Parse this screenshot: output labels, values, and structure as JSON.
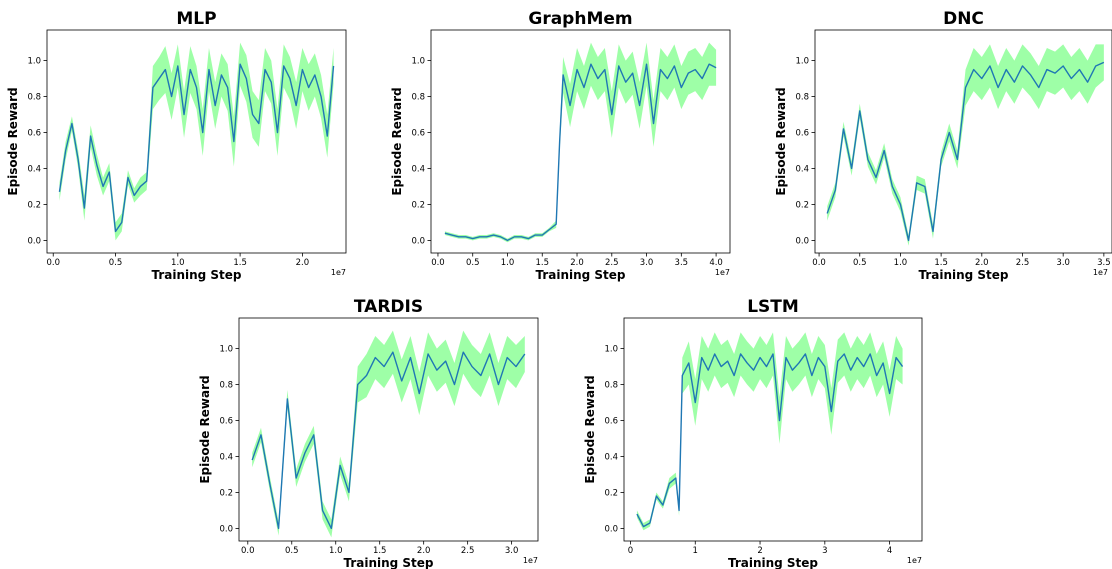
{
  "chart_data": [
    {
      "type": "line",
      "title": "MLP",
      "xlabel": "Training Step",
      "ylabel": "Episode Reward",
      "x_offset_label": "1e7",
      "xlim": [
        -0.05,
        2.35
      ],
      "ylim": [
        -0.07,
        1.17
      ],
      "xticks": [
        0.0,
        0.5,
        1.0,
        1.5,
        2.0
      ],
      "xtick_labels": [
        "0.0",
        "0.5",
        "1.0",
        "1.5",
        "2.0"
      ],
      "yticks": [
        0.0,
        0.2,
        0.4,
        0.6,
        0.8,
        1.0
      ],
      "ytick_labels": [
        "0.0",
        "0.2",
        "0.4",
        "0.6",
        "0.8",
        "1.0"
      ],
      "colors": {
        "line": "#1f77b4",
        "band": "#7dff8a"
      },
      "series": [
        {
          "x": [
            0.05,
            0.1,
            0.15,
            0.2,
            0.25,
            0.3,
            0.35,
            0.4,
            0.45,
            0.5,
            0.55,
            0.6,
            0.65,
            0.7,
            0.75,
            0.8,
            0.85,
            0.9,
            0.95,
            1.0,
            1.05,
            1.1,
            1.15,
            1.2,
            1.25,
            1.3,
            1.35,
            1.4,
            1.45,
            1.5,
            1.55,
            1.6,
            1.65,
            1.7,
            1.75,
            1.8,
            1.85,
            1.9,
            1.95,
            2.0,
            2.05,
            2.1,
            2.15,
            2.2,
            2.25
          ],
          "y": [
            0.27,
            0.5,
            0.65,
            0.45,
            0.18,
            0.58,
            0.42,
            0.3,
            0.38,
            0.05,
            0.1,
            0.35,
            0.25,
            0.3,
            0.33,
            0.85,
            0.9,
            0.95,
            0.8,
            0.97,
            0.7,
            0.95,
            0.85,
            0.6,
            0.95,
            0.75,
            0.92,
            0.85,
            0.55,
            0.98,
            0.9,
            0.7,
            0.65,
            0.95,
            0.88,
            0.6,
            0.97,
            0.9,
            0.75,
            0.95,
            0.85,
            0.92,
            0.8,
            0.58,
            0.97
          ],
          "band": [
            0.05,
            0.05,
            0.04,
            0.05,
            0.07,
            0.06,
            0.06,
            0.05,
            0.05,
            0.05,
            0.05,
            0.04,
            0.04,
            0.05,
            0.05,
            0.12,
            0.12,
            0.13,
            0.13,
            0.12,
            0.13,
            0.13,
            0.12,
            0.13,
            0.12,
            0.13,
            0.12,
            0.13,
            0.14,
            0.12,
            0.13,
            0.13,
            0.13,
            0.12,
            0.12,
            0.13,
            0.12,
            0.12,
            0.13,
            0.12,
            0.13,
            0.12,
            0.12,
            0.12,
            0.1
          ]
        }
      ]
    },
    {
      "type": "line",
      "title": "GraphMem",
      "xlabel": "Training Step",
      "ylabel": "Episode Reward",
      "x_offset_label": "1e7",
      "xlim": [
        -0.1,
        4.2
      ],
      "ylim": [
        -0.07,
        1.17
      ],
      "xticks": [
        0.0,
        0.5,
        1.0,
        1.5,
        2.0,
        2.5,
        3.0,
        3.5,
        4.0
      ],
      "xtick_labels": [
        "0.0",
        "0.5",
        "1.0",
        "1.5",
        "2.0",
        "2.5",
        "3.0",
        "3.5",
        "4.0"
      ],
      "yticks": [
        0.0,
        0.2,
        0.4,
        0.6,
        0.8,
        1.0
      ],
      "ytick_labels": [
        "0.0",
        "0.2",
        "0.4",
        "0.6",
        "0.8",
        "1.0"
      ],
      "colors": {
        "line": "#1f77b4",
        "band": "#7dff8a"
      },
      "series": [
        {
          "x": [
            0.1,
            0.2,
            0.3,
            0.4,
            0.5,
            0.6,
            0.7,
            0.8,
            0.9,
            1.0,
            1.1,
            1.2,
            1.3,
            1.4,
            1.5,
            1.6,
            1.7,
            1.75,
            1.8,
            1.9,
            2.0,
            2.1,
            2.2,
            2.3,
            2.4,
            2.5,
            2.6,
            2.7,
            2.8,
            2.9,
            3.0,
            3.1,
            3.2,
            3.3,
            3.4,
            3.5,
            3.6,
            3.7,
            3.8,
            3.9,
            4.0
          ],
          "y": [
            0.04,
            0.03,
            0.02,
            0.02,
            0.01,
            0.02,
            0.02,
            0.03,
            0.02,
            0.0,
            0.02,
            0.02,
            0.01,
            0.03,
            0.03,
            0.06,
            0.09,
            0.55,
            0.92,
            0.75,
            0.95,
            0.85,
            0.98,
            0.9,
            0.95,
            0.7,
            0.97,
            0.88,
            0.93,
            0.75,
            0.98,
            0.65,
            0.95,
            0.9,
            0.97,
            0.85,
            0.93,
            0.95,
            0.9,
            0.98,
            0.96
          ],
          "band": [
            0.01,
            0.01,
            0.01,
            0.01,
            0.01,
            0.01,
            0.01,
            0.01,
            0.01,
            0.01,
            0.01,
            0.01,
            0.01,
            0.01,
            0.01,
            0.01,
            0.02,
            0.05,
            0.1,
            0.12,
            0.12,
            0.12,
            0.12,
            0.12,
            0.12,
            0.13,
            0.12,
            0.12,
            0.12,
            0.13,
            0.12,
            0.13,
            0.12,
            0.12,
            0.12,
            0.12,
            0.12,
            0.12,
            0.12,
            0.12,
            0.1
          ]
        }
      ]
    },
    {
      "type": "line",
      "title": "DNC",
      "xlabel": "Training Step",
      "ylabel": "Episode Reward",
      "x_offset_label": "1e7",
      "xlim": [
        -0.05,
        3.6
      ],
      "ylim": [
        -0.07,
        1.17
      ],
      "xticks": [
        0.0,
        0.5,
        1.0,
        1.5,
        2.0,
        2.5,
        3.0,
        3.5
      ],
      "xtick_labels": [
        "0.0",
        "0.5",
        "1.0",
        "1.5",
        "2.0",
        "2.5",
        "3.0",
        "3.5"
      ],
      "yticks": [
        0.0,
        0.2,
        0.4,
        0.6,
        0.8,
        1.0
      ],
      "ytick_labels": [
        "0.0",
        "0.2",
        "0.4",
        "0.6",
        "0.8",
        "1.0"
      ],
      "colors": {
        "line": "#1f77b4",
        "band": "#7dff8a"
      },
      "series": [
        {
          "x": [
            0.1,
            0.2,
            0.3,
            0.4,
            0.5,
            0.6,
            0.7,
            0.8,
            0.9,
            1.0,
            1.1,
            1.2,
            1.3,
            1.4,
            1.5,
            1.6,
            1.7,
            1.8,
            1.9,
            2.0,
            2.1,
            2.2,
            2.3,
            2.4,
            2.5,
            2.6,
            2.7,
            2.8,
            2.9,
            3.0,
            3.1,
            3.2,
            3.3,
            3.4,
            3.5
          ],
          "y": [
            0.15,
            0.28,
            0.62,
            0.4,
            0.72,
            0.45,
            0.35,
            0.5,
            0.3,
            0.2,
            0.0,
            0.32,
            0.3,
            0.05,
            0.45,
            0.6,
            0.45,
            0.85,
            0.95,
            0.9,
            0.97,
            0.85,
            0.95,
            0.88,
            0.97,
            0.92,
            0.85,
            0.95,
            0.93,
            0.97,
            0.9,
            0.95,
            0.88,
            0.97,
            0.99
          ],
          "band": [
            0.04,
            0.04,
            0.04,
            0.04,
            0.04,
            0.04,
            0.04,
            0.04,
            0.04,
            0.04,
            0.03,
            0.04,
            0.04,
            0.04,
            0.04,
            0.05,
            0.05,
            0.1,
            0.12,
            0.12,
            0.12,
            0.12,
            0.12,
            0.12,
            0.12,
            0.12,
            0.12,
            0.12,
            0.12,
            0.12,
            0.12,
            0.12,
            0.12,
            0.12,
            0.1
          ]
        }
      ]
    },
    {
      "type": "line",
      "title": "TARDIS",
      "xlabel": "Training Step",
      "ylabel": "Episode Reward",
      "x_offset_label": "1e7",
      "xlim": [
        -0.1,
        3.3
      ],
      "ylim": [
        -0.07,
        1.17
      ],
      "xticks": [
        0.0,
        0.5,
        1.0,
        1.5,
        2.0,
        2.5,
        3.0
      ],
      "xtick_labels": [
        "0.0",
        "0.5",
        "1.0",
        "1.5",
        "2.0",
        "2.5",
        "3.0"
      ],
      "yticks": [
        0.0,
        0.2,
        0.4,
        0.6,
        0.8,
        1.0
      ],
      "ytick_labels": [
        "0.0",
        "0.2",
        "0.4",
        "0.6",
        "0.8",
        "1.0"
      ],
      "colors": {
        "line": "#1f77b4",
        "band": "#7dff8a"
      },
      "series": [
        {
          "x": [
            0.05,
            0.15,
            0.25,
            0.35,
            0.45,
            0.55,
            0.65,
            0.75,
            0.85,
            0.95,
            1.05,
            1.15,
            1.25,
            1.35,
            1.45,
            1.55,
            1.65,
            1.75,
            1.85,
            1.95,
            2.05,
            2.15,
            2.25,
            2.35,
            2.45,
            2.55,
            2.65,
            2.75,
            2.85,
            2.95,
            3.05,
            3.15
          ],
          "y": [
            0.38,
            0.52,
            0.25,
            0.0,
            0.72,
            0.28,
            0.42,
            0.52,
            0.1,
            0.0,
            0.35,
            0.2,
            0.8,
            0.85,
            0.95,
            0.9,
            0.98,
            0.82,
            0.95,
            0.75,
            0.97,
            0.88,
            0.93,
            0.8,
            0.98,
            0.9,
            0.85,
            0.97,
            0.8,
            0.95,
            0.9,
            0.97
          ],
          "band": [
            0.04,
            0.04,
            0.04,
            0.04,
            0.05,
            0.05,
            0.05,
            0.05,
            0.05,
            0.05,
            0.05,
            0.05,
            0.1,
            0.12,
            0.12,
            0.12,
            0.12,
            0.12,
            0.12,
            0.12,
            0.12,
            0.12,
            0.12,
            0.12,
            0.12,
            0.12,
            0.12,
            0.12,
            0.12,
            0.12,
            0.12,
            0.1
          ]
        }
      ]
    },
    {
      "type": "line",
      "title": "LSTM",
      "xlabel": "Training Step",
      "ylabel": "Episode Reward",
      "x_offset_label": "1e7",
      "xlim": [
        -0.1,
        4.5
      ],
      "ylim": [
        -0.07,
        1.17
      ],
      "xticks": [
        0,
        1,
        2,
        3,
        4
      ],
      "xtick_labels": [
        "0",
        "1",
        "2",
        "3",
        "4"
      ],
      "yticks": [
        0.0,
        0.2,
        0.4,
        0.6,
        0.8,
        1.0
      ],
      "ytick_labels": [
        "0.0",
        "0.2",
        "0.4",
        "0.6",
        "0.8",
        "1.0"
      ],
      "colors": {
        "line": "#1f77b4",
        "band": "#7dff8a"
      },
      "series": [
        {
          "x": [
            0.1,
            0.2,
            0.3,
            0.4,
            0.5,
            0.6,
            0.7,
            0.75,
            0.8,
            0.9,
            1.0,
            1.1,
            1.2,
            1.3,
            1.4,
            1.5,
            1.6,
            1.7,
            1.8,
            1.9,
            2.0,
            2.1,
            2.2,
            2.3,
            2.4,
            2.5,
            2.6,
            2.7,
            2.8,
            2.9,
            3.0,
            3.1,
            3.2,
            3.3,
            3.4,
            3.5,
            3.6,
            3.7,
            3.8,
            3.9,
            4.0,
            4.1,
            4.2
          ],
          "y": [
            0.08,
            0.01,
            0.03,
            0.18,
            0.13,
            0.25,
            0.28,
            0.1,
            0.85,
            0.92,
            0.7,
            0.95,
            0.88,
            0.97,
            0.9,
            0.93,
            0.85,
            0.97,
            0.92,
            0.88,
            0.95,
            0.9,
            0.97,
            0.6,
            0.95,
            0.88,
            0.92,
            0.97,
            0.85,
            0.95,
            0.9,
            0.65,
            0.93,
            0.97,
            0.88,
            0.95,
            0.9,
            0.97,
            0.85,
            0.92,
            0.75,
            0.95,
            0.9
          ],
          "band": [
            0.02,
            0.02,
            0.02,
            0.02,
            0.02,
            0.03,
            0.03,
            0.03,
            0.1,
            0.12,
            0.13,
            0.12,
            0.12,
            0.12,
            0.12,
            0.12,
            0.12,
            0.12,
            0.12,
            0.12,
            0.12,
            0.12,
            0.12,
            0.13,
            0.12,
            0.12,
            0.12,
            0.12,
            0.12,
            0.12,
            0.12,
            0.13,
            0.12,
            0.12,
            0.12,
            0.12,
            0.12,
            0.12,
            0.12,
            0.12,
            0.13,
            0.12,
            0.1
          ]
        }
      ]
    }
  ]
}
